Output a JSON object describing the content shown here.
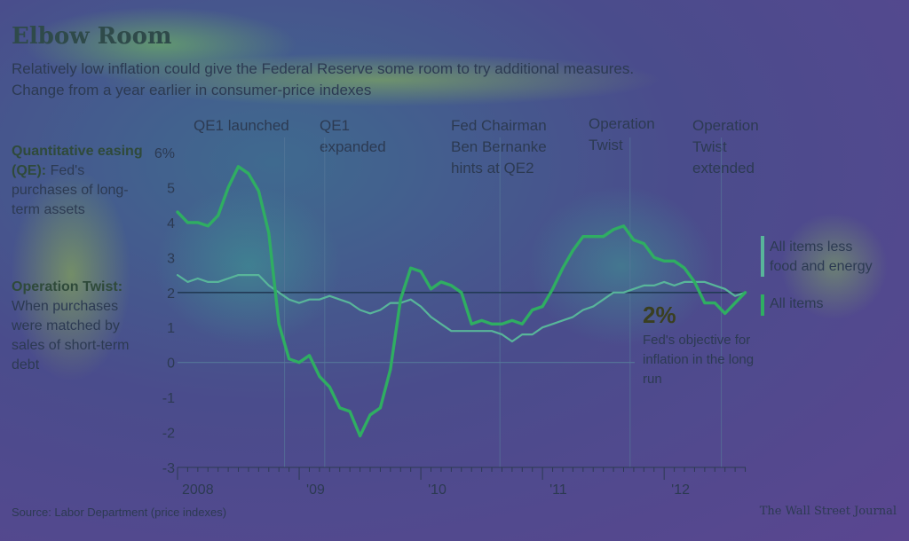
{
  "header": {
    "title": "Elbow Room",
    "subtitle_line1": "Relatively low inflation could give the Federal Reserve some room to try additional measures.",
    "subtitle_line2": "Change from a year earlier in consumer-price indexes"
  },
  "sidebar": {
    "qe_term": "Quantitative easing (QE):",
    "qe_definition": "Fed's purchases of long-term assets",
    "twist_term": "Operation Twist:",
    "twist_definition": "When purchases were matched by sales of short-term debt"
  },
  "events": [
    {
      "label_lines": [
        "QE1 launched"
      ],
      "date": 2008.88
    },
    {
      "label_lines": [
        "QE1",
        "expanded"
      ],
      "date": 2009.21
    },
    {
      "label_lines": [
        "Fed Chairman",
        "Ben Bernanke",
        "hints at QE2"
      ],
      "date": 2010.65
    },
    {
      "label_lines": [
        "Operation",
        "Twist"
      ],
      "date": 2011.72
    },
    {
      "label_lines": [
        "Operation",
        "Twist",
        "extended"
      ],
      "date": 2012.47
    }
  ],
  "annotation": {
    "pct": "2%",
    "text": "Fed's objective for inflation in the long run"
  },
  "footer": {
    "source": "Source: Labor Department (price indexes)",
    "credit": "The Wall Street Journal"
  },
  "colors": {
    "all_items": "#2fae62",
    "core": "#58b59a",
    "grid": "#557799",
    "target_line": "#223a55",
    "axis_text": "#2c3a52"
  },
  "chart_data": {
    "type": "line",
    "title": "Elbow Room",
    "subtitle": "Change from a year earlier in consumer-price indexes",
    "xlabel": "",
    "ylabel": "",
    "ylim": [
      -3,
      6
    ],
    "xlim": [
      2008.0,
      2012.67
    ],
    "y_ticks": [
      6,
      5,
      4,
      3,
      2,
      1,
      0,
      -1,
      -2,
      -3
    ],
    "y_tick_labels": [
      "6%",
      "5",
      "4",
      "3",
      "2",
      "1",
      "0",
      "-1",
      "-2",
      "-3"
    ],
    "x_ticks": [
      2008,
      2009,
      2010,
      2011,
      2012
    ],
    "x_tick_labels": [
      "2008",
      "'09",
      "'10",
      "'11",
      "'12"
    ],
    "reference_line": {
      "y": 2,
      "label": "2%"
    },
    "grid": false,
    "legend_position": "right",
    "x_dates": [
      "2008-01",
      "2008-02",
      "2008-03",
      "2008-04",
      "2008-05",
      "2008-06",
      "2008-07",
      "2008-08",
      "2008-09",
      "2008-10",
      "2008-11",
      "2008-12",
      "2009-01",
      "2009-02",
      "2009-03",
      "2009-04",
      "2009-05",
      "2009-06",
      "2009-07",
      "2009-08",
      "2009-09",
      "2009-10",
      "2009-11",
      "2009-12",
      "2010-01",
      "2010-02",
      "2010-03",
      "2010-04",
      "2010-05",
      "2010-06",
      "2010-07",
      "2010-08",
      "2010-09",
      "2010-10",
      "2010-11",
      "2010-12",
      "2011-01",
      "2011-02",
      "2011-03",
      "2011-04",
      "2011-05",
      "2011-06",
      "2011-07",
      "2011-08",
      "2011-09",
      "2011-10",
      "2011-11",
      "2011-12",
      "2012-01",
      "2012-02",
      "2012-03",
      "2012-04",
      "2012-05",
      "2012-06",
      "2012-07",
      "2012-08",
      "2012-09"
    ],
    "series": [
      {
        "name": "All items less food and energy",
        "values": [
          2.5,
          2.3,
          2.4,
          2.3,
          2.3,
          2.4,
          2.5,
          2.5,
          2.5,
          2.2,
          2.0,
          1.8,
          1.7,
          1.8,
          1.8,
          1.9,
          1.8,
          1.7,
          1.5,
          1.4,
          1.5,
          1.7,
          1.7,
          1.8,
          1.6,
          1.3,
          1.1,
          0.9,
          0.9,
          0.9,
          0.9,
          0.9,
          0.8,
          0.6,
          0.8,
          0.8,
          1.0,
          1.1,
          1.2,
          1.3,
          1.5,
          1.6,
          1.8,
          2.0,
          2.0,
          2.1,
          2.2,
          2.2,
          2.3,
          2.2,
          2.3,
          2.3,
          2.3,
          2.2,
          2.1,
          1.9,
          2.0
        ]
      },
      {
        "name": "All items",
        "values": [
          4.3,
          4.0,
          4.0,
          3.9,
          4.2,
          5.0,
          5.6,
          5.4,
          4.9,
          3.7,
          1.1,
          0.1,
          0.0,
          0.2,
          -0.4,
          -0.7,
          -1.3,
          -1.4,
          -2.1,
          -1.5,
          -1.3,
          -0.2,
          1.8,
          2.7,
          2.6,
          2.1,
          2.3,
          2.2,
          2.0,
          1.1,
          1.2,
          1.1,
          1.1,
          1.2,
          1.1,
          1.5,
          1.6,
          2.1,
          2.7,
          3.2,
          3.6,
          3.6,
          3.6,
          3.8,
          3.9,
          3.5,
          3.4,
          3.0,
          2.9,
          2.9,
          2.7,
          2.3,
          1.7,
          1.7,
          1.4,
          1.7,
          2.0
        ]
      }
    ],
    "legend": [
      "All items less food and energy",
      "All items"
    ]
  }
}
